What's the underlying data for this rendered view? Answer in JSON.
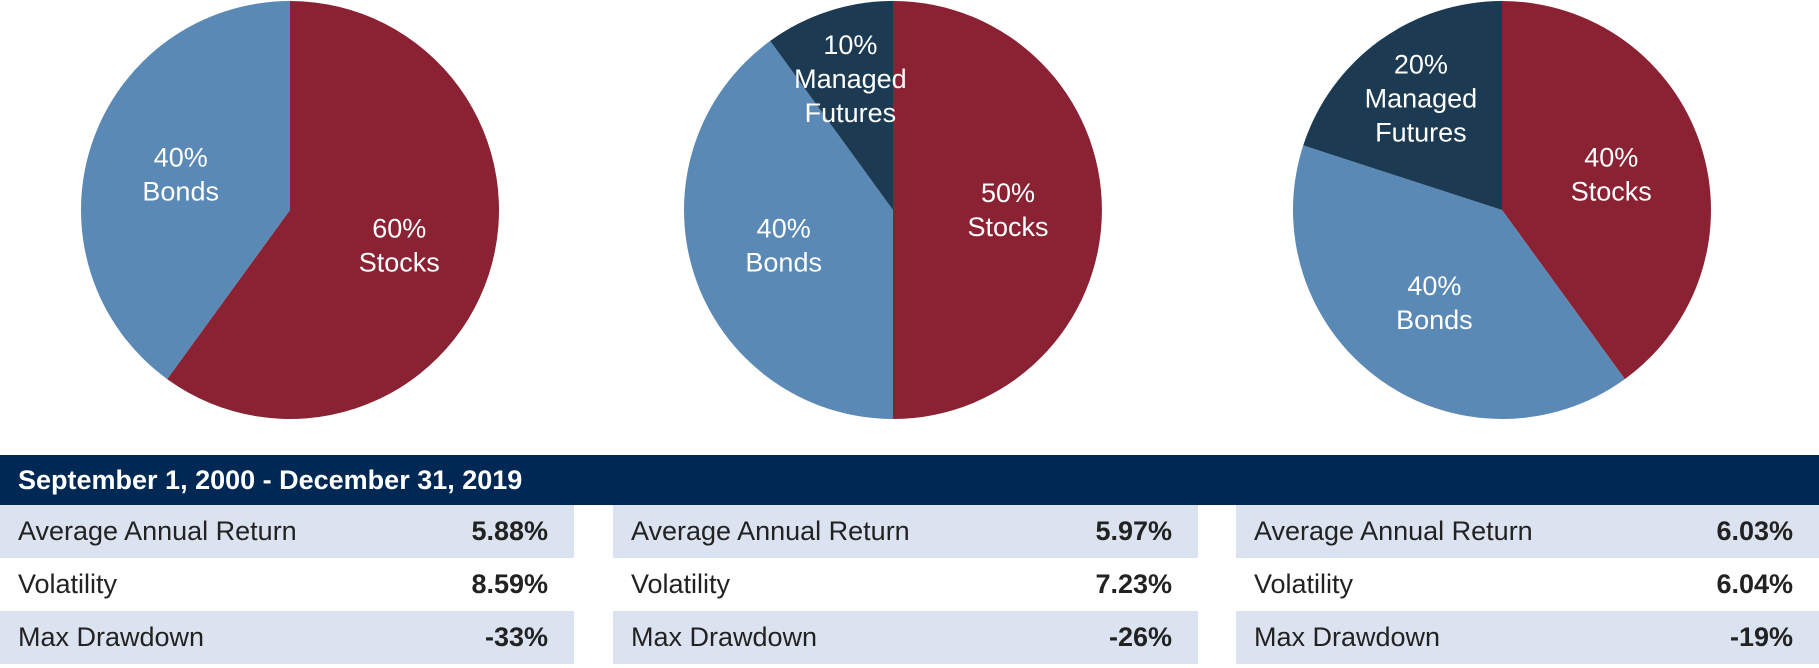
{
  "chart_data": [
    {
      "type": "pie",
      "slices": [
        {
          "label_lines": [
            "60%",
            "Stocks"
          ],
          "value": 60,
          "color": "#8b2233"
        },
        {
          "label_lines": [
            "40%",
            "Bonds"
          ],
          "value": 40,
          "color": "#5a89b5"
        }
      ]
    },
    {
      "type": "pie",
      "slices": [
        {
          "label_lines": [
            "50%",
            "Stocks"
          ],
          "value": 50,
          "color": "#8b2233"
        },
        {
          "label_lines": [
            "40%",
            "Bonds"
          ],
          "value": 40,
          "color": "#5a89b5"
        },
        {
          "label_lines": [
            "10%",
            "Managed",
            "Futures"
          ],
          "value": 10,
          "color": "#1c3a52"
        }
      ]
    },
    {
      "type": "pie",
      "slices": [
        {
          "label_lines": [
            "40%",
            "Stocks"
          ],
          "value": 40,
          "color": "#8b2233"
        },
        {
          "label_lines": [
            "40%",
            "Bonds"
          ],
          "value": 40,
          "color": "#5a89b5"
        },
        {
          "label_lines": [
            "20%",
            "Managed",
            "Futures"
          ],
          "value": 20,
          "color": "#1c3a52"
        }
      ]
    }
  ],
  "period": "September 1, 2000 - December 31, 2019",
  "stats": [
    {
      "rows": [
        {
          "label": "Average Annual Return",
          "value": "5.88%"
        },
        {
          "label": "Volatility",
          "value": "8.59%"
        },
        {
          "label": "Max Drawdown",
          "value": "-33%"
        }
      ]
    },
    {
      "rows": [
        {
          "label": "Average Annual Return",
          "value": "5.97%"
        },
        {
          "label": "Volatility",
          "value": "7.23%"
        },
        {
          "label": "Max Drawdown",
          "value": "-26%"
        }
      ]
    },
    {
      "rows": [
        {
          "label": "Average Annual Return",
          "value": "6.03%"
        },
        {
          "label": "Volatility",
          "value": "6.04%"
        },
        {
          "label": "Max Drawdown",
          "value": "-19%"
        }
      ]
    }
  ]
}
